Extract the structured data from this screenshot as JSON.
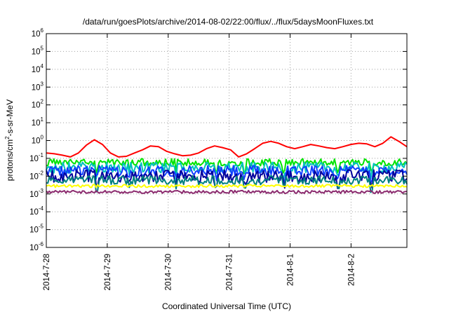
{
  "chart_data": {
    "type": "line",
    "title": "/data/run/goesPlots/archive/2014-08-02/22:00/flux/../flux/5daysMoonFluxes.txt",
    "xlabel": "Coordinated Universal Time (UTC)",
    "ylabel": "protons/cm2-s-sr-MeV",
    "ylabel_parts": {
      "before": "protons/cm",
      "sup": "2",
      "after": "-s-sr-MeV"
    },
    "yscale": "log",
    "ylim": [
      1e-06,
      1000000.0
    ],
    "xlim": [
      "2014-07-28 00:00",
      "2014-08-02 22:00"
    ],
    "grid": true,
    "legend": "none",
    "y_ticks": [
      {
        "value": 1e-06,
        "base": "10",
        "exp": "-6"
      },
      {
        "value": 1e-05,
        "base": "10",
        "exp": "-5"
      },
      {
        "value": 0.0001,
        "base": "10",
        "exp": "-4"
      },
      {
        "value": 0.001,
        "base": "10",
        "exp": "-3"
      },
      {
        "value": 0.01,
        "base": "10",
        "exp": "-2"
      },
      {
        "value": 0.1,
        "base": "10",
        "exp": "-1"
      },
      {
        "value": 1.0,
        "base": "10",
        "exp": "0"
      },
      {
        "value": 10.0,
        "base": "10",
        "exp": "1"
      },
      {
        "value": 100.0,
        "base": "10",
        "exp": "2"
      },
      {
        "value": 1000.0,
        "base": "10",
        "exp": "3"
      },
      {
        "value": 10000.0,
        "base": "10",
        "exp": "4"
      },
      {
        "value": 100000.0,
        "base": "10",
        "exp": "5"
      },
      {
        "value": 1000000.0,
        "base": "10",
        "exp": "6"
      }
    ],
    "x_ticks": [
      {
        "label": "2014-7-28",
        "value": "2014-07-28 00:00"
      },
      {
        "label": "2014-7-29",
        "value": "2014-07-29 00:00"
      },
      {
        "label": "2014-7-30",
        "value": "2014-07-30 00:00"
      },
      {
        "label": "2014-7-31",
        "value": "2014-07-31 00:00"
      },
      {
        "label": "2014-8-1",
        "value": "2014-08-01 00:00"
      },
      {
        "label": "2014-8-2",
        "value": "2014-08-02 00:00"
      }
    ],
    "series": [
      {
        "color": "#ff0000",
        "level": 0.3,
        "values": [
          0.2,
          0.18,
          0.15,
          0.12,
          0.2,
          0.55,
          1.1,
          0.6,
          0.2,
          0.12,
          0.13,
          0.2,
          0.3,
          0.5,
          0.45,
          0.25,
          0.18,
          0.14,
          0.15,
          0.2,
          0.35,
          0.5,
          0.4,
          0.3,
          0.12,
          0.18,
          0.35,
          0.7,
          0.9,
          0.7,
          0.45,
          0.35,
          0.45,
          0.6,
          0.5,
          0.4,
          0.35,
          0.45,
          0.6,
          0.7,
          0.65,
          0.45,
          0.7,
          1.6,
          0.9,
          0.45
        ]
      },
      {
        "color": "#00e400",
        "level": 0.06,
        "spread": 0.2
      },
      {
        "color": "#00c0c0",
        "level": 0.03,
        "spread": 0.3
      },
      {
        "color": "#1040ff",
        "level": 0.02,
        "spread": 0.3
      },
      {
        "color": "#00009c",
        "level": 0.01,
        "spread": 0.35
      },
      {
        "color": "#008080",
        "level": 0.006,
        "spread": 0.25
      },
      {
        "color": "#ffff00",
        "level": 0.0028,
        "spread": 0.08
      },
      {
        "color": "#8b2a6e",
        "level": 0.0013,
        "spread": 0.08
      }
    ]
  }
}
